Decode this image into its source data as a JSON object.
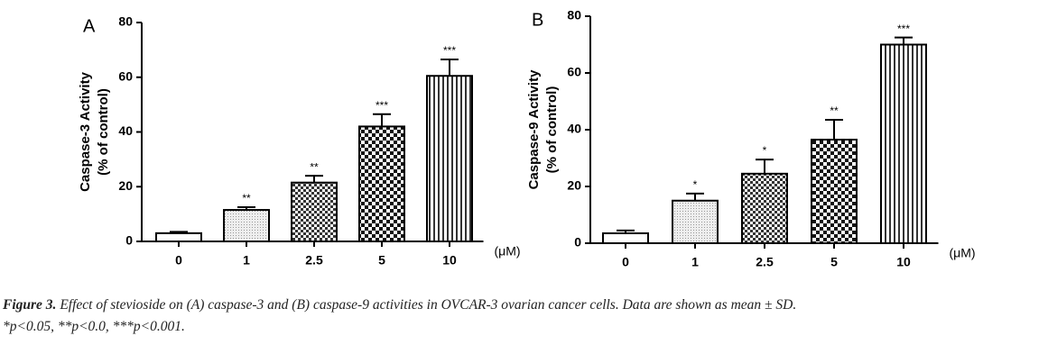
{
  "chart_data": [
    {
      "type": "bar",
      "panel": "A",
      "ylabel": [
        "Caspase-3 Activity",
        "(% of control)"
      ],
      "xunit": "(μM)",
      "categories": [
        "0",
        "1",
        "2.5",
        "5",
        "10"
      ],
      "values": [
        3,
        11.5,
        21.5,
        42,
        60.5
      ],
      "errors": [
        0.5,
        1,
        2.5,
        4.5,
        6
      ],
      "annotations": [
        null,
        "**",
        "**",
        "***",
        "***"
      ],
      "ylim": [
        0,
        80
      ],
      "yticks": [
        0,
        20,
        40,
        60,
        80
      ]
    },
    {
      "type": "bar",
      "panel": "B",
      "ylabel": [
        "Caspase-9 Activity",
        "(% of control)"
      ],
      "xunit": "(μM)",
      "categories": [
        "0",
        "1",
        "2.5",
        "5",
        "10"
      ],
      "values": [
        3.5,
        15,
        24.5,
        36.5,
        70
      ],
      "errors": [
        1,
        2.5,
        5,
        7,
        2.5
      ],
      "annotations": [
        null,
        "*",
        "*",
        "**",
        "***"
      ],
      "ylim": [
        0,
        80
      ],
      "yticks": [
        0,
        20,
        40,
        60,
        80
      ]
    }
  ],
  "caption": {
    "label": "Figure 3.",
    "line1": "Effect of stevioside on (A) caspase-3 and (B) caspase-9 activities in OVCAR-3 ovarian cancer cells. Data are shown as mean ± SD.",
    "line2": "*p<0.05, **p<0.0, ***p<0.001."
  }
}
